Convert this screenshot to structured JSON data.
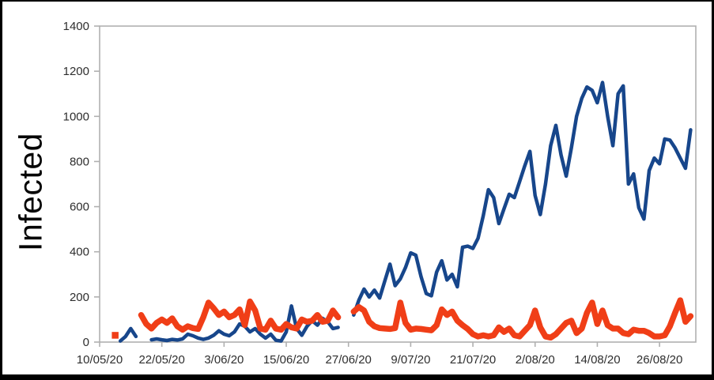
{
  "figure": {
    "background_color": "#ffffff",
    "outer_border_color": "#000000"
  },
  "chart_data": {
    "type": "line",
    "title": "",
    "xlabel": "",
    "ylabel": "Infected",
    "legend": "none",
    "grid": false,
    "axis_color": "#b0b0b0",
    "tick_label_color": "#2e2e2e",
    "ylim": [
      0,
      1400
    ],
    "y_ticks": [
      0,
      200,
      400,
      600,
      800,
      1000,
      1200,
      1400
    ],
    "x_start_date": "10/05/20",
    "x_tick_interval_days": 12,
    "x_total_days": 115,
    "x_tick_labels": [
      "10/05/20",
      "22/05/20",
      "3/06/20",
      "15/06/20",
      "27/06/20",
      "9/07/20",
      "21/07/20",
      "2/08/20",
      "14/08/20",
      "26/08/20"
    ],
    "cadence": "daily values indexed from 10/05/20; null = no data (gaps)",
    "series": [
      {
        "name": "blue-line",
        "color": "#17468b",
        "stroke_width": 4.5,
        "values": [
          null,
          null,
          null,
          null,
          5,
          25,
          60,
          25,
          null,
          null,
          10,
          14,
          10,
          7,
          12,
          9,
          14,
          35,
          28,
          18,
          12,
          18,
          30,
          50,
          35,
          28,
          45,
          80,
          70,
          45,
          60,
          35,
          18,
          35,
          8,
          5,
          45,
          160,
          60,
          30,
          70,
          95,
          75,
          105,
          90,
          60,
          65,
          null,
          null,
          120,
          185,
          235,
          200,
          230,
          195,
          270,
          345,
          250,
          280,
          330,
          395,
          385,
          290,
          215,
          205,
          310,
          360,
          275,
          300,
          245,
          420,
          425,
          415,
          460,
          560,
          675,
          640,
          525,
          590,
          655,
          640,
          710,
          780,
          845,
          650,
          565,
          700,
          870,
          960,
          830,
          735,
          860,
          1000,
          1080,
          1130,
          1115,
          1060,
          1150,
          1000,
          870,
          1100,
          1135,
          700,
          745,
          595,
          545,
          760,
          815,
          790,
          900,
          895,
          860,
          815,
          770,
          940
        ]
      },
      {
        "name": "orange-line",
        "color": "#f03e17",
        "stroke_width": 7.5,
        "values": [
          null,
          null,
          null,
          30,
          null,
          null,
          null,
          null,
          120,
          80,
          60,
          85,
          100,
          85,
          105,
          70,
          55,
          70,
          62,
          58,
          110,
          175,
          150,
          120,
          135,
          110,
          120,
          145,
          75,
          180,
          140,
          60,
          55,
          95,
          60,
          55,
          80,
          65,
          60,
          100,
          90,
          95,
          120,
          90,
          95,
          140,
          110,
          null,
          null,
          135,
          155,
          140,
          90,
          70,
          62,
          60,
          58,
          62,
          175,
          85,
          55,
          60,
          58,
          55,
          52,
          75,
          145,
          120,
          135,
          95,
          75,
          58,
          35,
          25,
          30,
          25,
          30,
          65,
          45,
          60,
          30,
          25,
          50,
          75,
          140,
          65,
          25,
          20,
          35,
          60,
          85,
          95,
          40,
          60,
          130,
          175,
          80,
          140,
          75,
          60,
          60,
          40,
          35,
          55,
          50,
          50,
          40,
          25,
          25,
          30,
          70,
          130,
          185,
          90,
          115
        ]
      }
    ]
  }
}
